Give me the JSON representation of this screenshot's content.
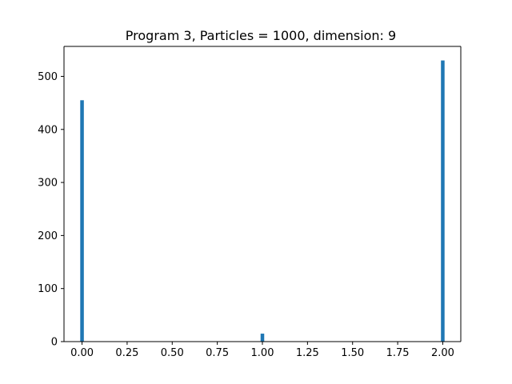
{
  "chart_data": {
    "type": "bar",
    "title": "Program 3, Particles = 1000, dimension: 9",
    "xlabel": "",
    "ylabel": "",
    "x": [
      0.0,
      1.0,
      2.0
    ],
    "values": [
      455,
      15,
      530
    ],
    "bin_width": 0.02,
    "xlim": [
      -0.1,
      2.1
    ],
    "ylim": [
      0,
      556.5
    ],
    "xticks": [
      0.0,
      0.25,
      0.5,
      0.75,
      1.0,
      1.25,
      1.5,
      1.75,
      2.0
    ],
    "xtick_labels": [
      "0.00",
      "0.25",
      "0.50",
      "0.75",
      "1.00",
      "1.25",
      "1.50",
      "1.75",
      "2.00"
    ],
    "yticks": [
      0,
      100,
      200,
      300,
      400,
      500
    ],
    "ytick_labels": [
      "0",
      "100",
      "200",
      "300",
      "400",
      "500"
    ],
    "grid": false,
    "legend": "none",
    "colors": {
      "bar": "#1f77b4",
      "axis": "#000000",
      "background": "#ffffff"
    }
  }
}
